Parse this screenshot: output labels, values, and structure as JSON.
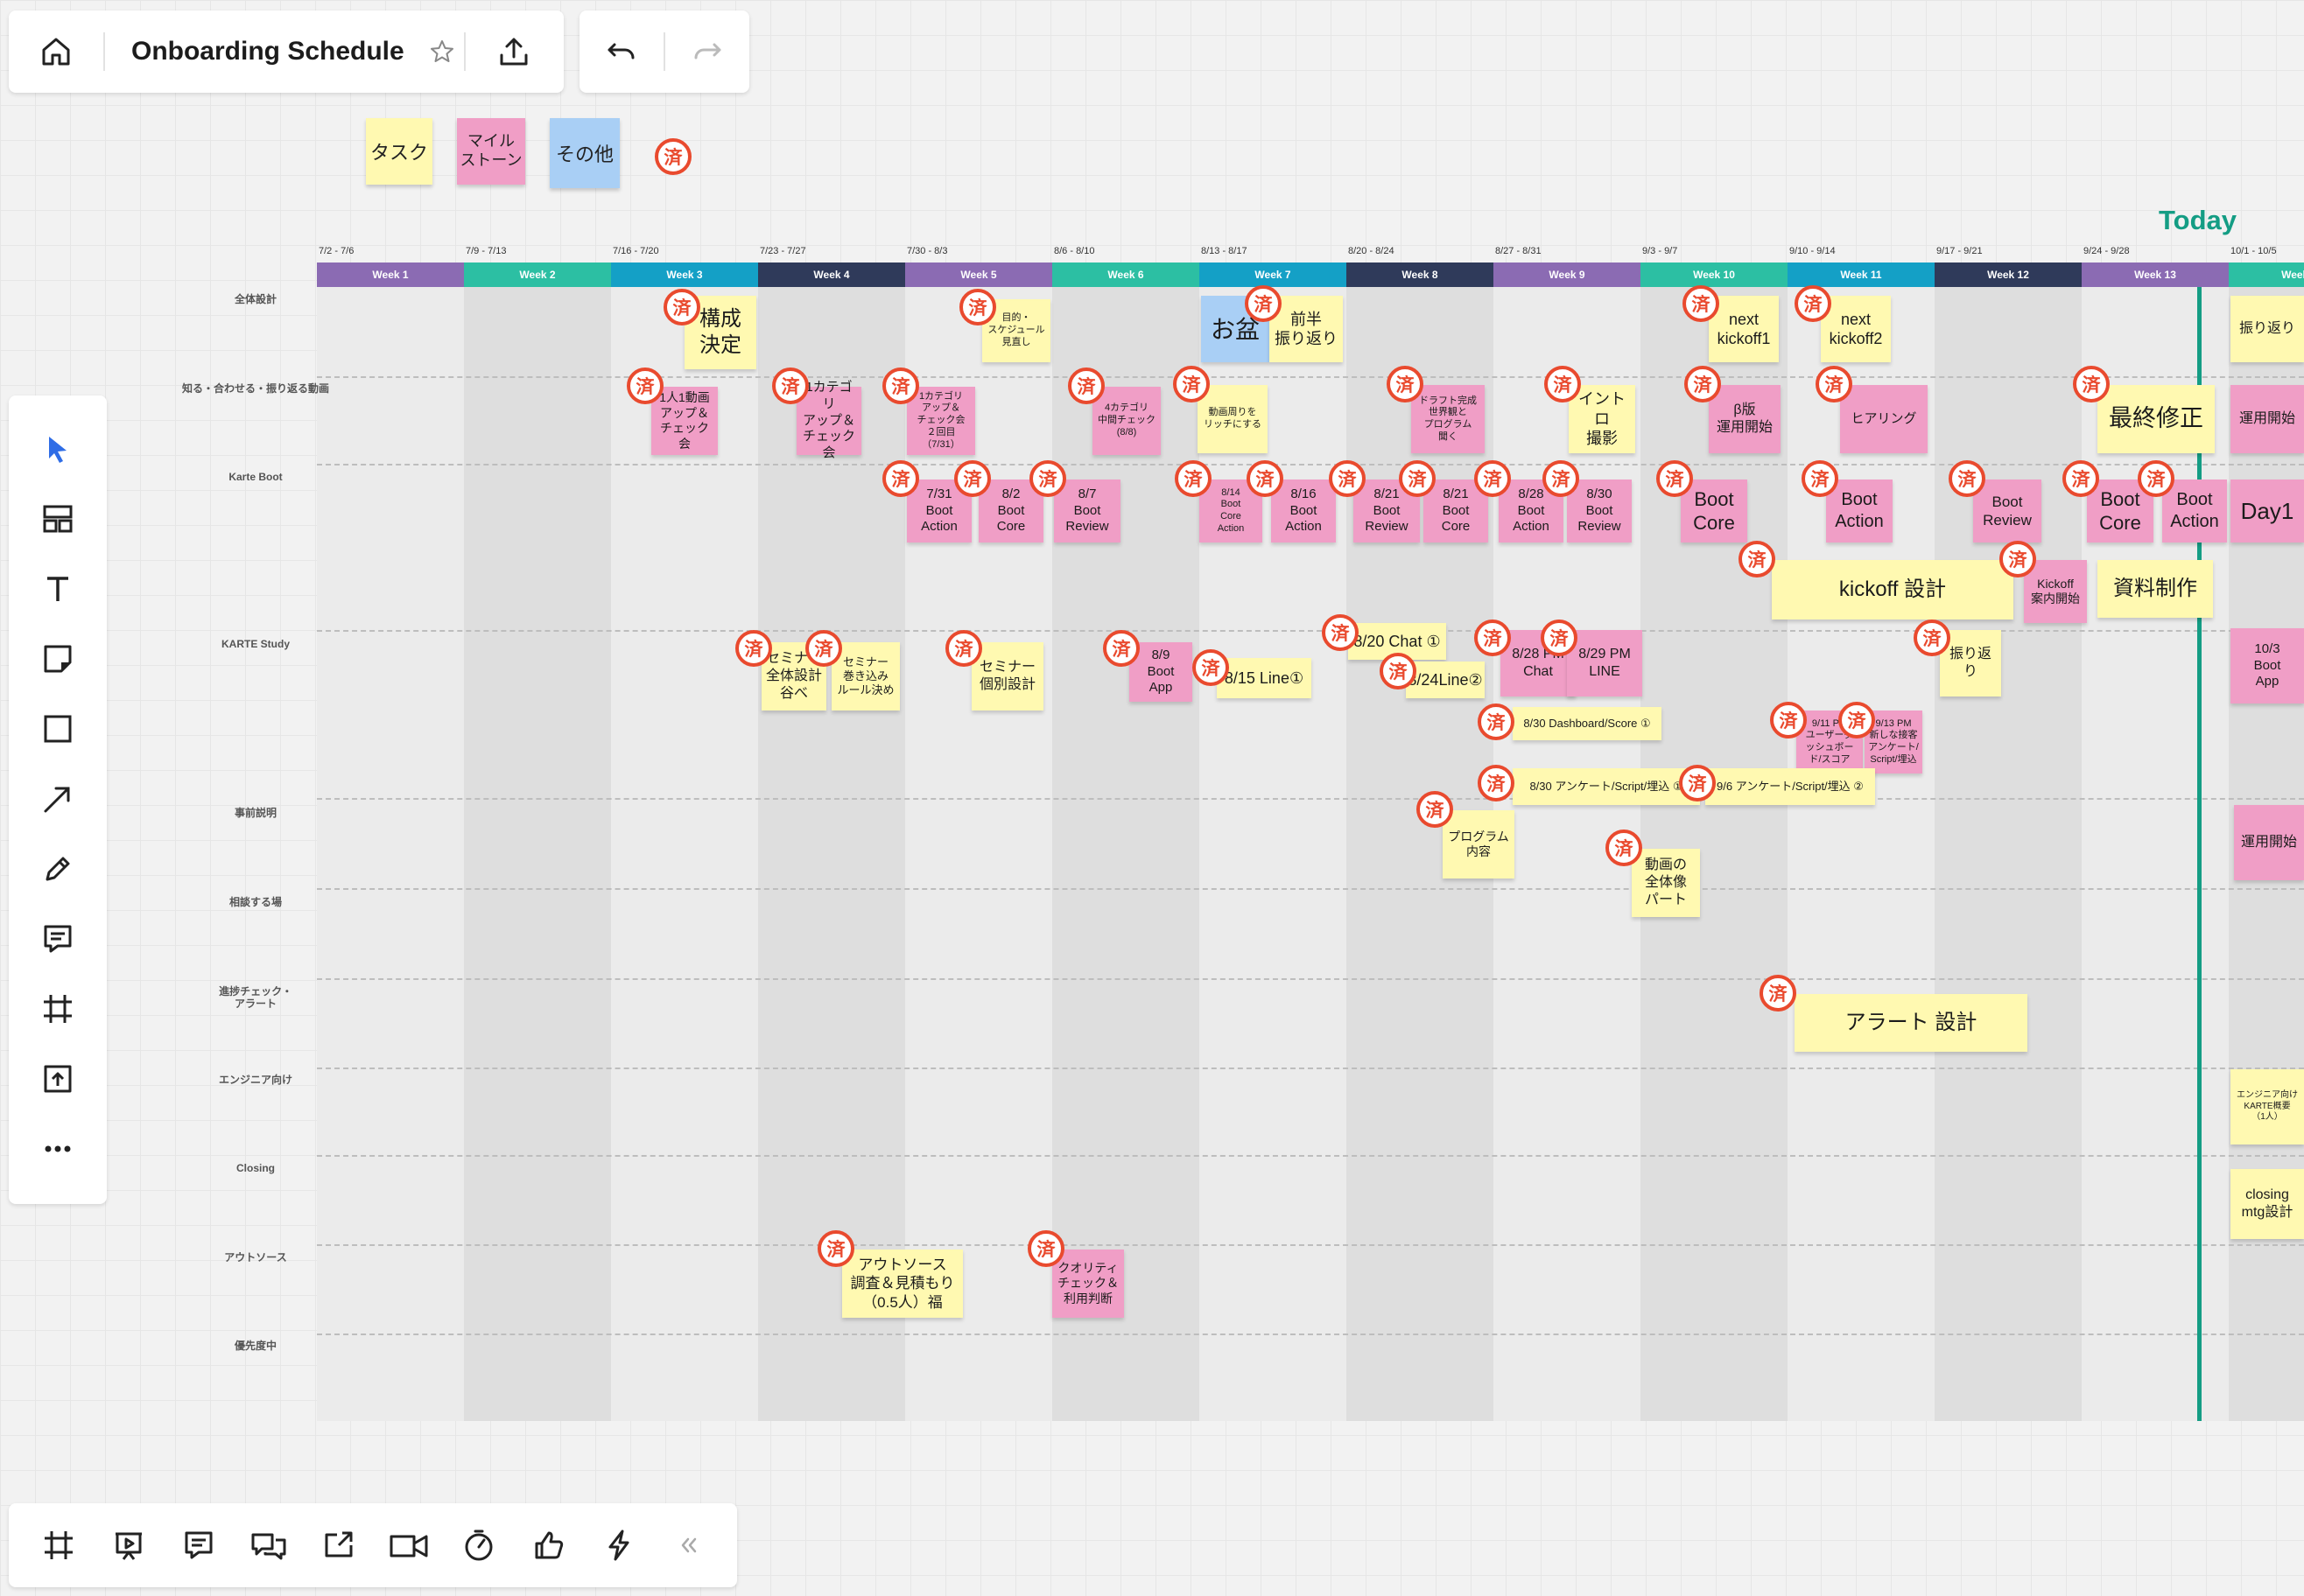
{
  "board": {
    "title": "Onboarding Schedule"
  },
  "legend": [
    {
      "label": "タスク",
      "color": "#fff9b1"
    },
    {
      "label": "マイル\nストーン",
      "color": "#f09ec6"
    },
    {
      "label": "その他",
      "color": "#a9cff5"
    }
  ],
  "done_mark": "済",
  "today_label": "Today",
  "weeks": [
    {
      "label": "Week 1",
      "range": "7/2 - 7/6",
      "color": "#8b6bb3"
    },
    {
      "label": "Week 2",
      "range": "7/9 - 7/13",
      "color": "#2cbfa3"
    },
    {
      "label": "Week 3",
      "range": "7/16 - 7/20",
      "color": "#14a0c6"
    },
    {
      "label": "Week 4",
      "range": "7/23 - 7/27",
      "color": "#2f3a5a"
    },
    {
      "label": "Week 5",
      "range": "7/30 - 8/3",
      "color": "#8b6bb3"
    },
    {
      "label": "Week 6",
      "range": "8/6 - 8/10",
      "color": "#2cbfa3"
    },
    {
      "label": "Week 7",
      "range": "8/13 - 8/17",
      "color": "#14a0c6"
    },
    {
      "label": "Week 8",
      "range": "8/20 - 8/24",
      "color": "#2f3a5a"
    },
    {
      "label": "Week 9",
      "range": "8/27 - 8/31",
      "color": "#8b6bb3"
    },
    {
      "label": "Week 10",
      "range": "9/3 - 9/7",
      "color": "#2cbfa3"
    },
    {
      "label": "Week 11",
      "range": "9/10 - 9/14",
      "color": "#14a0c6"
    },
    {
      "label": "Week 12",
      "range": "9/17 - 9/21",
      "color": "#2f3a5a"
    },
    {
      "label": "Week 13",
      "range": "9/24 - 9/28",
      "color": "#8b6bb3"
    },
    {
      "label": "Week 14",
      "range": "10/1 - 10/5",
      "color": "#2cbfa3"
    }
  ],
  "rows": [
    "全体設計",
    "知る・合わせる・振り返る動画",
    "Karte Boot",
    "KARTE Study",
    "事前説明",
    "相談する場",
    "進捗チェック・\nアラート",
    "エンジニア向け",
    "Closing",
    "アウトソース",
    "優先度中"
  ],
  "notes": [
    {
      "text": "構成\n決定",
      "color": "y",
      "done": true
    },
    {
      "text": "目的・\nスケジュール\n見直し",
      "color": "y",
      "done": true
    },
    {
      "text": "お盆",
      "color": "b",
      "done": false
    },
    {
      "text": "前半\n振り返り",
      "color": "y",
      "done": true
    },
    {
      "text": "next\nkickoff1",
      "color": "y",
      "done": true
    },
    {
      "text": "next\nkickoff2",
      "color": "y",
      "done": true
    },
    {
      "text": "振り返り",
      "color": "y",
      "done": false
    },
    {
      "text": "1人1動画\nアップ＆\nチェック会",
      "color": "p",
      "done": true
    },
    {
      "text": "1カテゴリ\nアップ＆\nチェック会",
      "color": "p",
      "done": true
    },
    {
      "text": "1カテゴリ\nアップ＆\nチェック会\n２回目（7/31）",
      "color": "p",
      "done": true
    },
    {
      "text": "4カテゴリ\n中間チェック\n(8/8)",
      "color": "p",
      "done": true
    },
    {
      "text": "動画周りを\nリッチにする",
      "color": "y",
      "done": true
    },
    {
      "text": "ドラフト完成\n世界観と\nプログラム\n聞く",
      "color": "p",
      "done": true
    },
    {
      "text": "イントロ\n撮影",
      "color": "y",
      "done": true
    },
    {
      "text": "β版\n運用開始",
      "color": "p",
      "done": true
    },
    {
      "text": "ヒアリング",
      "color": "p",
      "done": true
    },
    {
      "text": "最終修正",
      "color": "y",
      "done": true
    },
    {
      "text": "運用開始",
      "color": "p",
      "done": false
    },
    {
      "text": "7/31\nBoot\nAction",
      "color": "p",
      "done": true
    },
    {
      "text": "8/2\nBoot\nCore",
      "color": "p",
      "done": true
    },
    {
      "text": "8/7\nBoot\nReview",
      "color": "p",
      "done": true
    },
    {
      "text": "8/14\nBoot\nCore\nAction",
      "color": "p",
      "done": true
    },
    {
      "text": "8/16\nBoot\nAction",
      "color": "p",
      "done": true
    },
    {
      "text": "8/21\nBoot\nReview",
      "color": "p",
      "done": true
    },
    {
      "text": "8/21\nBoot\nCore",
      "color": "p",
      "done": true
    },
    {
      "text": "8/28\nBoot\nAction",
      "color": "p",
      "done": true
    },
    {
      "text": "8/30\nBoot\nReview",
      "color": "p",
      "done": true
    },
    {
      "text": "Boot\nCore",
      "color": "p",
      "done": true
    },
    {
      "text": "Boot\nAction",
      "color": "p",
      "done": true
    },
    {
      "text": "Boot\nReview",
      "color": "p",
      "done": true
    },
    {
      "text": "Boot\nCore",
      "color": "p",
      "done": true
    },
    {
      "text": "Boot\nAction",
      "color": "p",
      "done": true
    },
    {
      "text": "Day1",
      "color": "p",
      "done": false
    },
    {
      "text": "kickoff 設計",
      "color": "y",
      "done": true
    },
    {
      "text": "Kickoff\n案内開始",
      "color": "p",
      "done": true
    },
    {
      "text": "資料制作",
      "color": "y",
      "done": false
    },
    {
      "text": "セミナー\n全体設計\n谷べ",
      "color": "y",
      "done": true
    },
    {
      "text": "セミナー\n巻き込み\nルール決め",
      "color": "y",
      "done": true
    },
    {
      "text": "セミナー\n個別設計",
      "color": "y",
      "done": true
    },
    {
      "text": "8/9\nBoot\nApp",
      "color": "p",
      "done": true
    },
    {
      "text": "8/15 Line①",
      "color": "y",
      "done": true
    },
    {
      "text": "8/20 Chat ①",
      "color": "y",
      "done": true
    },
    {
      "text": "8/24Line②",
      "color": "y",
      "done": true
    },
    {
      "text": "8/28 PM\nChat",
      "color": "p",
      "done": true
    },
    {
      "text": "8/29 PM\nLINE",
      "color": "p",
      "done": true
    },
    {
      "text": "振り返り",
      "color": "y",
      "done": true
    },
    {
      "text": "10/3\nBoot\nApp",
      "color": "p",
      "done": false
    },
    {
      "text": "8/30 Dashboard/Score ①",
      "color": "y",
      "done": true
    },
    {
      "text": "9/11 PM\nユーザーダ\nッシュボー\nド/スコア",
      "color": "p",
      "done": true
    },
    {
      "text": "9/13 PM\n新しな接客\nアンケート/\nScript/埋込",
      "color": "p",
      "done": true
    },
    {
      "text": "8/30 アンケート/Script/埋込 ①",
      "color": "y",
      "done": true
    },
    {
      "text": "9/6 アンケート/Script/埋込 ②",
      "color": "y",
      "done": true
    },
    {
      "text": "プログラム\n内容",
      "color": "y",
      "done": true
    },
    {
      "text": "運用開始",
      "color": "p",
      "done": false
    },
    {
      "text": "動画の\n全体像\nパート",
      "color": "y",
      "done": true
    },
    {
      "text": "アラート 設計",
      "color": "y",
      "done": true
    },
    {
      "text": "エンジニア向け\nKARTE概要\n（1人）",
      "color": "y",
      "done": false
    },
    {
      "text": "closing\nmtg設計",
      "color": "y",
      "done": false
    },
    {
      "text": "アウトソース\n調査＆見積もり\n（0.5人）福",
      "color": "y",
      "done": true
    },
    {
      "text": "クオリティ\nチェック＆\n利用判断",
      "color": "p",
      "done": true
    }
  ]
}
